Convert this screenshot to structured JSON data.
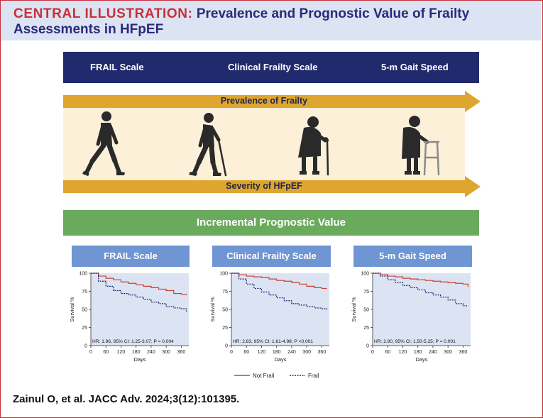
{
  "header": {
    "lead": "CENTRAL ILLUSTRATION:",
    "title": "Prevalence and Prognostic Value of Frailty Assessments in HFpEF"
  },
  "assessments": [
    "FRAIL Scale",
    "Clinical Frailty Scale",
    "5-m Gait Speed"
  ],
  "arrows": {
    "prevalence": "Prevalence of Frailty",
    "severity": "Severity of HFpEF"
  },
  "incremental": "Incremental Prognostic Value",
  "km_axes": {
    "ylabel": "Survival %",
    "xlabel": "Days",
    "y_ticks": [
      "0",
      "25",
      "50",
      "75",
      "100"
    ],
    "x_ticks": [
      "0",
      "60",
      "120",
      "180",
      "240",
      "300",
      "360"
    ]
  },
  "legend": {
    "not_frail": "Not Frail",
    "frail": "Frail"
  },
  "colors": {
    "not_frail": "#c8402f",
    "frail": "#1f2470"
  },
  "chart_data": [
    {
      "type": "line",
      "title": "FRAIL Scale",
      "xlabel": "Days",
      "ylabel": "Survival %",
      "xlim": [
        0,
        390
      ],
      "ylim": [
        0,
        100
      ],
      "hr_text": "HR: 1.96, 95% CI: 1.25-3.07; P = 0.004",
      "series": [
        {
          "name": "Not Frail",
          "x": [
            0,
            30,
            60,
            90,
            120,
            150,
            180,
            210,
            240,
            270,
            300,
            330,
            360,
            380
          ],
          "y": [
            100,
            96,
            93,
            91,
            88,
            86,
            84,
            82,
            80,
            78,
            76,
            72,
            71,
            70
          ]
        },
        {
          "name": "Frail",
          "x": [
            0,
            30,
            60,
            90,
            120,
            150,
            180,
            210,
            240,
            270,
            300,
            330,
            360,
            380
          ],
          "y": [
            100,
            89,
            82,
            76,
            72,
            70,
            67,
            64,
            60,
            58,
            54,
            52,
            51,
            47
          ]
        }
      ]
    },
    {
      "type": "line",
      "title": "Clinical Frailty Scale",
      "xlabel": "Days",
      "ylabel": "Survival %",
      "xlim": [
        0,
        390
      ],
      "ylim": [
        0,
        100
      ],
      "hr_text": "HR: 2.83, 95% CI: 1.61-4.98; P <0.001",
      "series": [
        {
          "name": "Not Frail",
          "x": [
            0,
            30,
            60,
            90,
            120,
            150,
            180,
            210,
            240,
            270,
            300,
            330,
            360,
            380
          ],
          "y": [
            100,
            98,
            96,
            95,
            94,
            92,
            90,
            89,
            87,
            85,
            82,
            80,
            79,
            79
          ]
        },
        {
          "name": "Frail",
          "x": [
            0,
            30,
            60,
            90,
            120,
            150,
            180,
            210,
            240,
            270,
            300,
            330,
            360,
            380
          ],
          "y": [
            100,
            92,
            85,
            79,
            74,
            70,
            66,
            62,
            58,
            56,
            54,
            52,
            51,
            50
          ]
        }
      ]
    },
    {
      "type": "line",
      "title": "5-m Gait Speed",
      "xlabel": "Days",
      "ylabel": "Survival %",
      "xlim": [
        0,
        390
      ],
      "ylim": [
        0,
        100
      ],
      "hr_text": "HR: 2.80, 95% CI: 1.50-5.25; P = 0.001",
      "series": [
        {
          "name": "Not Frail",
          "x": [
            0,
            30,
            60,
            90,
            120,
            150,
            180,
            210,
            240,
            270,
            300,
            330,
            360,
            380
          ],
          "y": [
            100,
            98,
            96,
            95,
            93,
            92,
            91,
            90,
            89,
            88,
            87,
            86,
            85,
            81
          ]
        },
        {
          "name": "Frail",
          "x": [
            0,
            30,
            60,
            90,
            120,
            150,
            180,
            210,
            240,
            270,
            300,
            330,
            360,
            380
          ],
          "y": [
            100,
            96,
            91,
            87,
            83,
            80,
            77,
            73,
            70,
            67,
            63,
            58,
            55,
            55
          ]
        }
      ]
    }
  ],
  "citation": "Zainul O, et al. JACC Adv. 2024;3(12):101395."
}
